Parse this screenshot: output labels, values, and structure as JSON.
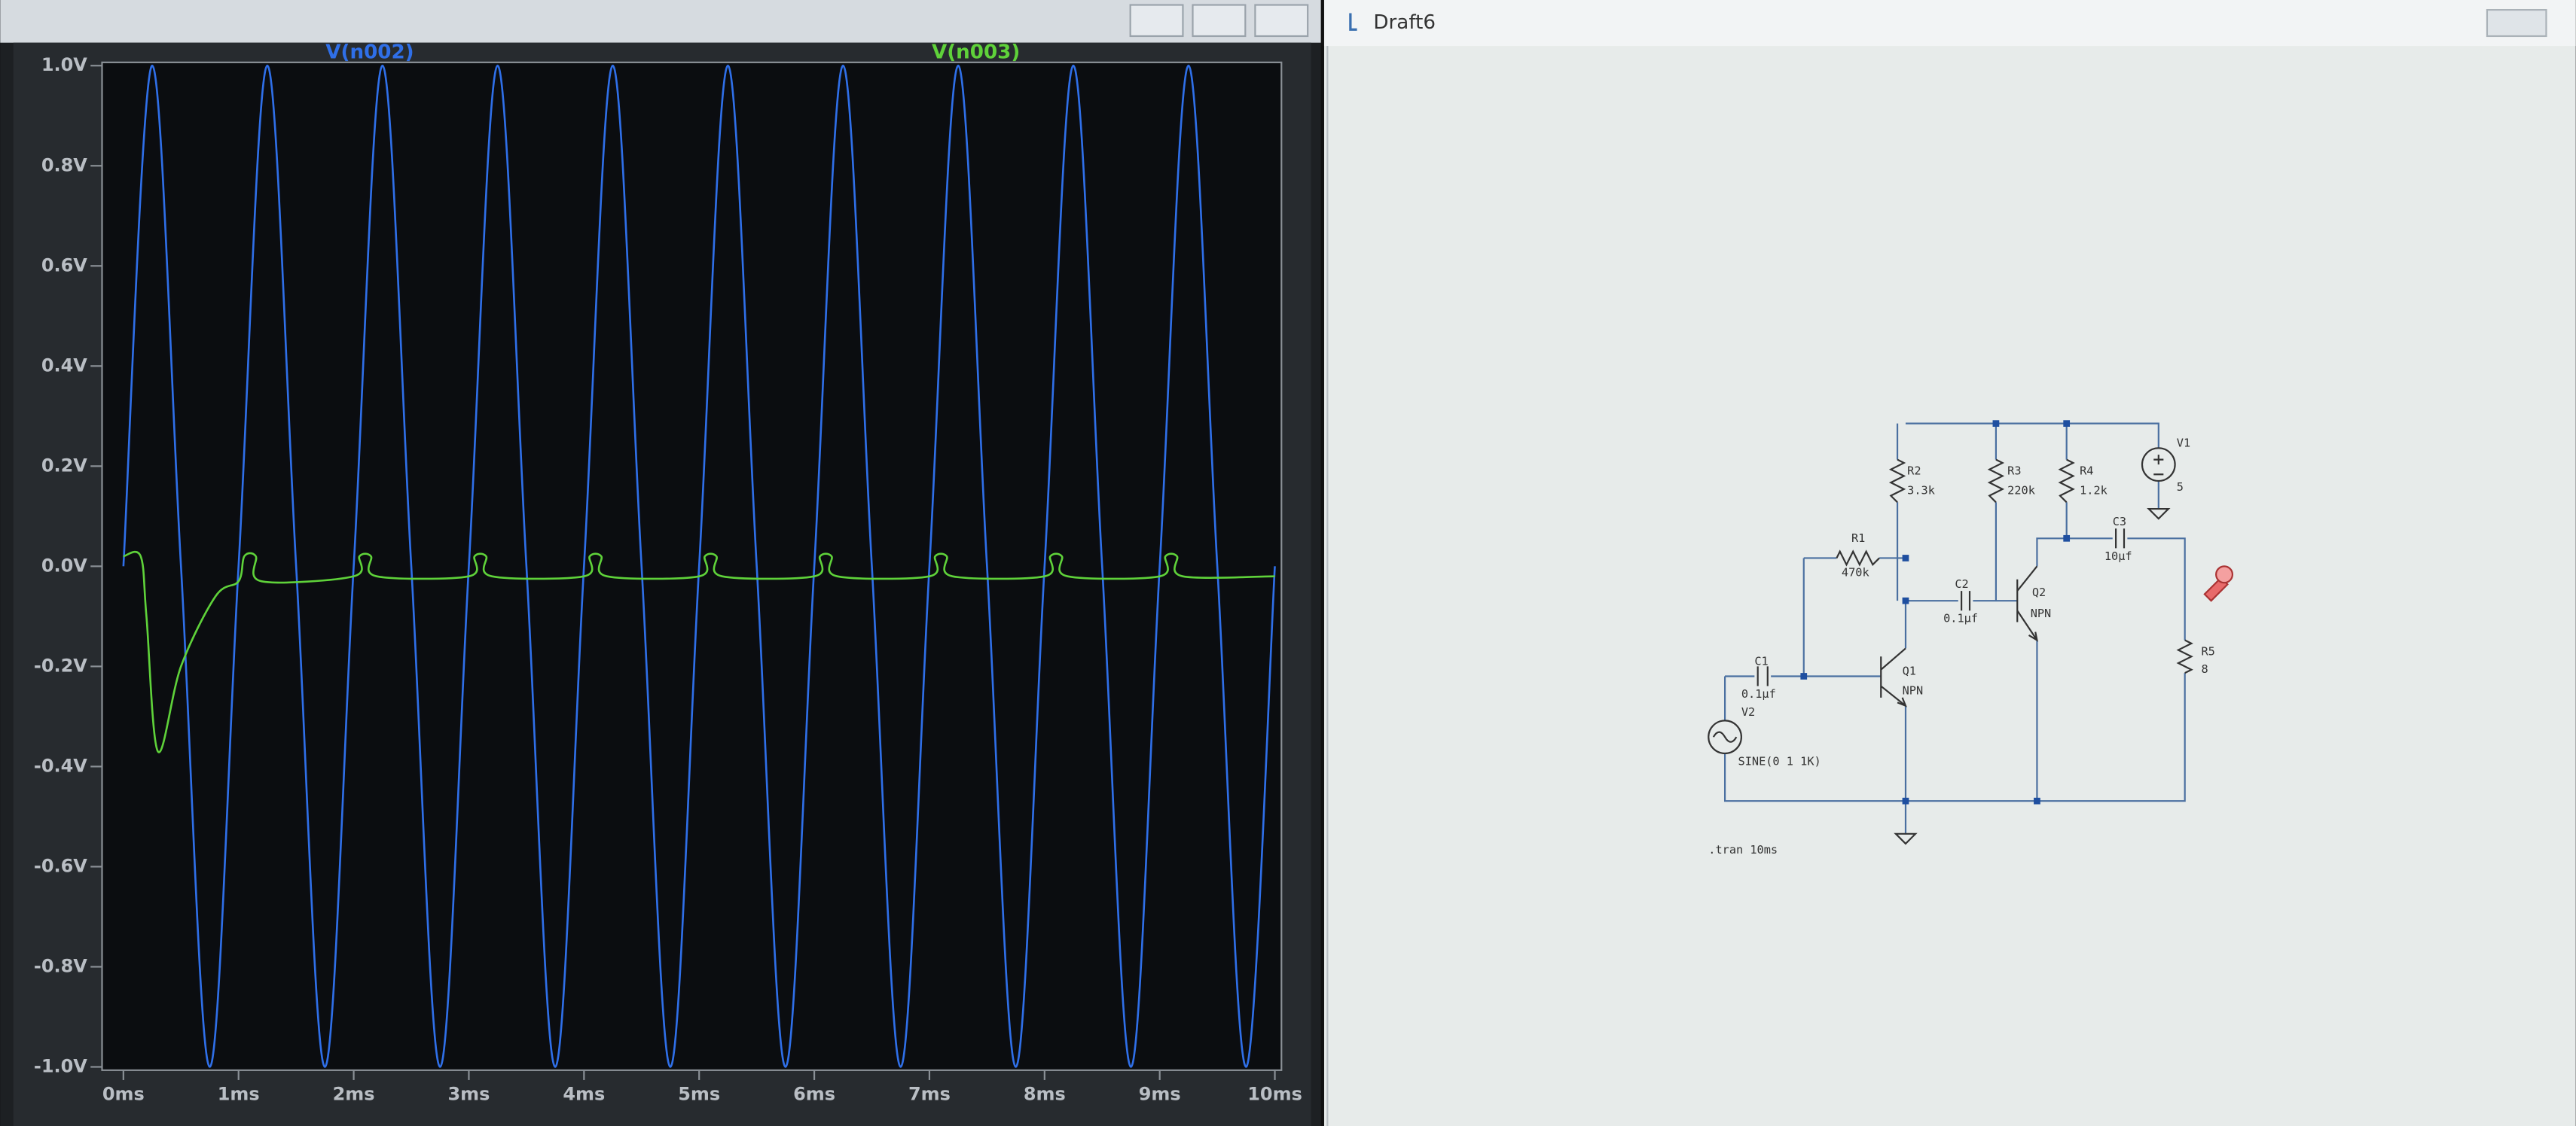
{
  "chart_data": {
    "type": "line",
    "series": [
      {
        "name": "V(n002)",
        "color": "#2f6fe8",
        "x": [
          0,
          0.25,
          0.5,
          0.75,
          1,
          1.25,
          1.5,
          1.75,
          2,
          2.25,
          2.5,
          2.75,
          3,
          3.25,
          3.5,
          3.75,
          4,
          4.25,
          4.5,
          4.75,
          5,
          5.25,
          5.5,
          5.75,
          6,
          6.25,
          6.5,
          6.75,
          7,
          7.25,
          7.5,
          7.75,
          8,
          8.25,
          8.5,
          8.75,
          9,
          9.25,
          9.5,
          9.75,
          10
        ],
        "values": [
          0,
          1,
          0,
          -1,
          0,
          1,
          0,
          -1,
          0,
          1,
          0,
          -1,
          0,
          1,
          0,
          -1,
          0,
          1,
          0,
          -1,
          0,
          1,
          0,
          -1,
          0,
          1,
          0,
          -1,
          0,
          1,
          0,
          -1,
          0,
          1,
          0,
          -1,
          0,
          1,
          0,
          -1,
          0
        ]
      },
      {
        "name": "V(n003)",
        "color": "#5fd23a",
        "x": [
          0,
          0.15,
          0.2,
          0.3,
          0.5,
          0.8,
          1.0,
          1.05,
          1.15,
          1.2,
          2.0,
          2.05,
          2.15,
          2.2,
          3.0,
          3.05,
          3.15,
          3.2,
          4.0,
          4.05,
          4.15,
          4.2,
          5.0,
          5.05,
          5.15,
          5.2,
          6.0,
          6.05,
          6.15,
          6.2,
          7.0,
          7.05,
          7.15,
          7.2,
          8.0,
          8.05,
          8.15,
          8.2,
          9.0,
          9.05,
          9.15,
          9.2,
          10
        ],
        "values": [
          0.02,
          0.02,
          -0.1,
          -0.37,
          -0.2,
          -0.06,
          -0.03,
          0.02,
          0.02,
          -0.03,
          -0.02,
          0.02,
          0.02,
          -0.02,
          -0.02,
          0.02,
          0.02,
          -0.02,
          -0.02,
          0.02,
          0.02,
          -0.02,
          -0.02,
          0.02,
          0.02,
          -0.02,
          -0.02,
          0.02,
          0.02,
          -0.02,
          -0.02,
          0.02,
          0.02,
          -0.02,
          -0.02,
          0.02,
          0.02,
          -0.02,
          -0.02,
          0.02,
          0.02,
          -0.02,
          -0.02
        ]
      }
    ],
    "xlim": [
      0,
      10
    ],
    "xticks": [
      {
        "value": 0,
        "label": "0ms"
      },
      {
        "value": 1,
        "label": "1ms"
      },
      {
        "value": 2,
        "label": "2ms"
      },
      {
        "value": 3,
        "label": "3ms"
      },
      {
        "value": 4,
        "label": "4ms"
      },
      {
        "value": 5,
        "label": "5ms"
      },
      {
        "value": 6,
        "label": "6ms"
      },
      {
        "value": 7,
        "label": "7ms"
      },
      {
        "value": 8,
        "label": "8ms"
      },
      {
        "value": 9,
        "label": "9ms"
      },
      {
        "value": 10,
        "label": "10ms"
      }
    ],
    "ylim": [
      -1,
      1
    ],
    "yticks": [
      {
        "value": 1,
        "label": "1.0V"
      },
      {
        "value": 0.8,
        "label": "0.8V"
      },
      {
        "value": 0.6,
        "label": "0.6V"
      },
      {
        "value": 0.4,
        "label": "0.4V"
      },
      {
        "value": 0.2,
        "label": "0.2V"
      },
      {
        "value": 0,
        "label": "0.0V"
      },
      {
        "value": -0.2,
        "label": "-0.2V"
      },
      {
        "value": -0.4,
        "label": "-0.4V"
      },
      {
        "value": -0.6,
        "label": "-0.6V"
      },
      {
        "value": -0.8,
        "label": "-0.8V"
      },
      {
        "value": -1,
        "label": "-1.0V"
      }
    ],
    "grid": false
  },
  "schematic": {
    "title": "Draft6",
    "components": [
      {
        "ref": "R1",
        "value": "470k"
      },
      {
        "ref": "R2",
        "value": "3.3k"
      },
      {
        "ref": "R3",
        "value": "220k"
      },
      {
        "ref": "R4",
        "value": "1.2k"
      },
      {
        "ref": "R5",
        "value": "8"
      },
      {
        "ref": "C1",
        "value": "0.1µf"
      },
      {
        "ref": "C2",
        "value": "0.1µf"
      },
      {
        "ref": "C3",
        "value": "10µf"
      },
      {
        "ref": "Q1",
        "value": "NPN"
      },
      {
        "ref": "Q2",
        "value": "NPN"
      },
      {
        "ref": "V1",
        "value": "5"
      },
      {
        "ref": "V2",
        "value": "SINE(0 1 1K)"
      }
    ],
    "directive": ".tran 10ms"
  }
}
